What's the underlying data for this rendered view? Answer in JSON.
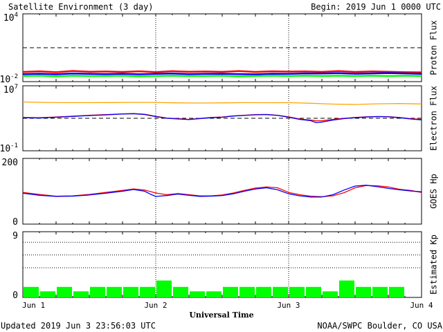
{
  "header": {
    "title": "Satellite Environment (3 day)",
    "begin": "Begin:  2019 Jun 1 0000 UTC"
  },
  "footer": {
    "updated": "Updated 2019 Jun  3 23:56:03 UTC",
    "credit": "NOAA/SWPC Boulder, CO USA"
  },
  "colors": {
    "red": "#ff0000",
    "blue": "#0000ff",
    "green": "#00ff00",
    "orange": "#ffa500"
  },
  "chart_data": [
    {
      "type": "line",
      "ylabel": "Proton Flux",
      "yscale": "log",
      "ylim": [
        0.01,
        10000
      ],
      "yticks": [
        {
          "base": "10",
          "exp": "4"
        },
        {
          "base": "10",
          "exp": "-2"
        }
      ],
      "threshold": 10,
      "xlim": [
        0,
        72
      ],
      "series": [
        {
          "color": "red",
          "points": [
            [
              0,
              0.036
            ],
            [
              3,
              0.042
            ],
            [
              6,
              0.034
            ],
            [
              9,
              0.045
            ],
            [
              12,
              0.038
            ],
            [
              15,
              0.04
            ],
            [
              18,
              0.036
            ],
            [
              21,
              0.042
            ],
            [
              24,
              0.035
            ],
            [
              27,
              0.043
            ],
            [
              30,
              0.038
            ],
            [
              33,
              0.04
            ],
            [
              36,
              0.037
            ],
            [
              39,
              0.044
            ],
            [
              42,
              0.036
            ],
            [
              45,
              0.042
            ],
            [
              48,
              0.039
            ],
            [
              51,
              0.041
            ],
            [
              54,
              0.037
            ],
            [
              57,
              0.044
            ],
            [
              60,
              0.036
            ],
            [
              63,
              0.041
            ],
            [
              66,
              0.038
            ],
            [
              69,
              0.034
            ],
            [
              72,
              0.033
            ]
          ]
        },
        {
          "color": "blue",
          "points": [
            [
              0,
              0.022
            ],
            [
              3,
              0.024
            ],
            [
              6,
              0.021
            ],
            [
              9,
              0.025
            ],
            [
              12,
              0.023
            ],
            [
              15,
              0.022
            ],
            [
              18,
              0.024
            ],
            [
              21,
              0.021
            ],
            [
              24,
              0.023
            ],
            [
              27,
              0.025
            ],
            [
              30,
              0.022
            ],
            [
              33,
              0.023
            ],
            [
              36,
              0.024
            ],
            [
              39,
              0.022
            ],
            [
              42,
              0.021
            ],
            [
              45,
              0.024
            ],
            [
              48,
              0.023
            ],
            [
              51,
              0.026
            ],
            [
              54,
              0.025
            ],
            [
              57,
              0.027
            ],
            [
              60,
              0.024
            ],
            [
              63,
              0.026
            ],
            [
              66,
              0.028
            ],
            [
              69,
              0.026
            ],
            [
              72,
              0.023
            ]
          ]
        },
        {
          "color": "green",
          "points": [
            [
              0,
              0.014
            ],
            [
              3,
              0.015
            ],
            [
              6,
              0.013
            ],
            [
              9,
              0.015
            ],
            [
              12,
              0.014
            ],
            [
              15,
              0.014
            ],
            [
              18,
              0.015
            ],
            [
              21,
              0.013
            ],
            [
              24,
              0.014
            ],
            [
              27,
              0.015
            ],
            [
              30,
              0.014
            ],
            [
              33,
              0.014
            ],
            [
              36,
              0.015
            ],
            [
              39,
              0.013
            ],
            [
              42,
              0.014
            ],
            [
              45,
              0.015
            ],
            [
              48,
              0.014
            ],
            [
              51,
              0.015
            ],
            [
              54,
              0.014
            ],
            [
              57,
              0.015
            ],
            [
              60,
              0.014
            ],
            [
              63,
              0.015
            ],
            [
              66,
              0.014
            ],
            [
              69,
              0.015
            ],
            [
              72,
              0.014
            ]
          ]
        }
      ]
    },
    {
      "type": "line",
      "ylabel": "Electron Flux",
      "yscale": "log",
      "ylim": [
        0.1,
        10000000
      ],
      "yticks": [
        {
          "base": "10",
          "exp": "7"
        },
        {
          "base": "10",
          "exp": "-1"
        }
      ],
      "threshold": 1000,
      "xlim": [
        0,
        72
      ],
      "series": [
        {
          "color": "orange",
          "points": [
            [
              0,
              200000
            ],
            [
              4,
              170000
            ],
            [
              8,
              160000
            ],
            [
              12,
              160000
            ],
            [
              16,
              165000
            ],
            [
              20,
              175000
            ],
            [
              24,
              170000
            ],
            [
              28,
              150000
            ],
            [
              32,
              140000
            ],
            [
              36,
              150000
            ],
            [
              40,
              160000
            ],
            [
              44,
              155000
            ],
            [
              48,
              160000
            ],
            [
              52,
              130000
            ],
            [
              56,
              100000
            ],
            [
              60,
              90000
            ],
            [
              64,
              110000
            ],
            [
              68,
              120000
            ],
            [
              72,
              105000
            ]
          ]
        },
        {
          "color": "red",
          "points": [
            [
              0,
              1300
            ],
            [
              3,
              1200
            ],
            [
              6,
              1500
            ],
            [
              9,
              2000
            ],
            [
              12,
              2600
            ],
            [
              15,
              3300
            ],
            [
              18,
              4200
            ],
            [
              20,
              4600
            ],
            [
              22,
              3700
            ],
            [
              24,
              1900
            ],
            [
              26,
              1100
            ],
            [
              28,
              900
            ],
            [
              30,
              700
            ],
            [
              32,
              950
            ],
            [
              34,
              1300
            ],
            [
              36,
              1500
            ],
            [
              38,
              2200
            ],
            [
              40,
              2700
            ],
            [
              42,
              3300
            ],
            [
              44,
              3500
            ],
            [
              46,
              2700
            ],
            [
              48,
              1600
            ],
            [
              50,
              800
            ],
            [
              52,
              560
            ],
            [
              53,
              440
            ],
            [
              54,
              440
            ],
            [
              56,
              720
            ],
            [
              58,
              1000
            ],
            [
              60,
              1300
            ],
            [
              62,
              1600
            ],
            [
              64,
              1800
            ],
            [
              66,
              1700
            ],
            [
              68,
              1300
            ],
            [
              70,
              900
            ],
            [
              72,
              700
            ]
          ]
        },
        {
          "color": "blue",
          "points": [
            [
              0,
              1200
            ],
            [
              3,
              1100
            ],
            [
              6,
              1400
            ],
            [
              9,
              1800
            ],
            [
              12,
              2400
            ],
            [
              15,
              3000
            ],
            [
              18,
              3900
            ],
            [
              20,
              4300
            ],
            [
              22,
              3400
            ],
            [
              24,
              1700
            ],
            [
              26,
              1000
            ],
            [
              28,
              800
            ],
            [
              30,
              650
            ],
            [
              32,
              900
            ],
            [
              34,
              1200
            ],
            [
              36,
              1400
            ],
            [
              38,
              2000
            ],
            [
              40,
              2500
            ],
            [
              42,
              3100
            ],
            [
              44,
              3300
            ],
            [
              46,
              2500
            ],
            [
              48,
              1400
            ],
            [
              50,
              700
            ],
            [
              52,
              460
            ],
            [
              53,
              240
            ],
            [
              54,
              290
            ],
            [
              56,
              560
            ],
            [
              58,
              900
            ],
            [
              60,
              1200
            ],
            [
              62,
              1500
            ],
            [
              64,
              1700
            ],
            [
              66,
              1600
            ],
            [
              68,
              1200
            ],
            [
              70,
              800
            ],
            [
              72,
              600
            ]
          ]
        }
      ]
    },
    {
      "type": "line",
      "ylabel": "GOES Hp",
      "yscale": "linear",
      "ylim": [
        0,
        200
      ],
      "yticks": [
        {
          "base": "200"
        },
        {
          "base": "0"
        }
      ],
      "xlim": [
        0,
        72
      ],
      "series": [
        {
          "color": "red",
          "points": [
            [
              0,
              96
            ],
            [
              3,
              89
            ],
            [
              6,
              83
            ],
            [
              9,
              84
            ],
            [
              12,
              89
            ],
            [
              15,
              96
            ],
            [
              18,
              103
            ],
            [
              20,
              108
            ],
            [
              22,
              104
            ],
            [
              24,
              94
            ],
            [
              26,
              88
            ],
            [
              28,
              92
            ],
            [
              30,
              88
            ],
            [
              32,
              84
            ],
            [
              34,
              84
            ],
            [
              36,
              87
            ],
            [
              38,
              94
            ],
            [
              40,
              103
            ],
            [
              42,
              111
            ],
            [
              44,
              115
            ],
            [
              46,
              112
            ],
            [
              48,
              96
            ],
            [
              50,
              88
            ],
            [
              52,
              83
            ],
            [
              54,
              81
            ],
            [
              56,
              84
            ],
            [
              58,
              95
            ],
            [
              60,
              112
            ],
            [
              62,
              120
            ],
            [
              64,
              119
            ],
            [
              66,
              115
            ],
            [
              68,
              107
            ],
            [
              70,
              103
            ],
            [
              72,
              96
            ]
          ]
        },
        {
          "color": "blue",
          "points": [
            [
              0,
              93
            ],
            [
              3,
              86
            ],
            [
              6,
              82
            ],
            [
              9,
              83
            ],
            [
              12,
              87
            ],
            [
              15,
              93
            ],
            [
              18,
              100
            ],
            [
              20,
              106
            ],
            [
              22,
              100
            ],
            [
              23,
              90
            ],
            [
              24,
              82
            ],
            [
              26,
              85
            ],
            [
              28,
              90
            ],
            [
              30,
              86
            ],
            [
              32,
              82
            ],
            [
              34,
              83
            ],
            [
              36,
              85
            ],
            [
              38,
              91
            ],
            [
              40,
              100
            ],
            [
              42,
              108
            ],
            [
              44,
              112
            ],
            [
              46,
              105
            ],
            [
              48,
              91
            ],
            [
              50,
              84
            ],
            [
              52,
              80
            ],
            [
              54,
              80
            ],
            [
              56,
              88
            ],
            [
              58,
              104
            ],
            [
              60,
              118
            ],
            [
              62,
              121
            ],
            [
              64,
              116
            ],
            [
              66,
              110
            ],
            [
              68,
              105
            ],
            [
              70,
              101
            ],
            [
              72,
              98
            ]
          ]
        }
      ]
    },
    {
      "type": "bar",
      "ylabel": "Estimated Kp",
      "ylim": [
        0,
        9
      ],
      "yticks": [
        {
          "base": "9"
        },
        {
          "base": "0"
        }
      ],
      "gridlines": [
        4,
        6,
        8
      ],
      "xlim": [
        0,
        72
      ],
      "bar_width_hours": 3,
      "values": [
        1,
        0.3,
        1,
        0.3,
        1,
        1,
        1,
        1,
        2,
        1,
        0.3,
        0.3,
        1,
        1,
        1,
        1,
        1,
        1,
        0.3,
        2,
        1,
        1,
        1,
        0
      ]
    }
  ],
  "xaxis": {
    "label": "Universal Time",
    "ticks": [
      {
        "t": 0,
        "label": "Jun 1"
      },
      {
        "t": 24,
        "label": "Jun 2"
      },
      {
        "t": 48,
        "label": "Jun 3"
      },
      {
        "t": 72,
        "label": "Jun 4"
      }
    ],
    "day_lines": [
      24,
      48
    ]
  }
}
